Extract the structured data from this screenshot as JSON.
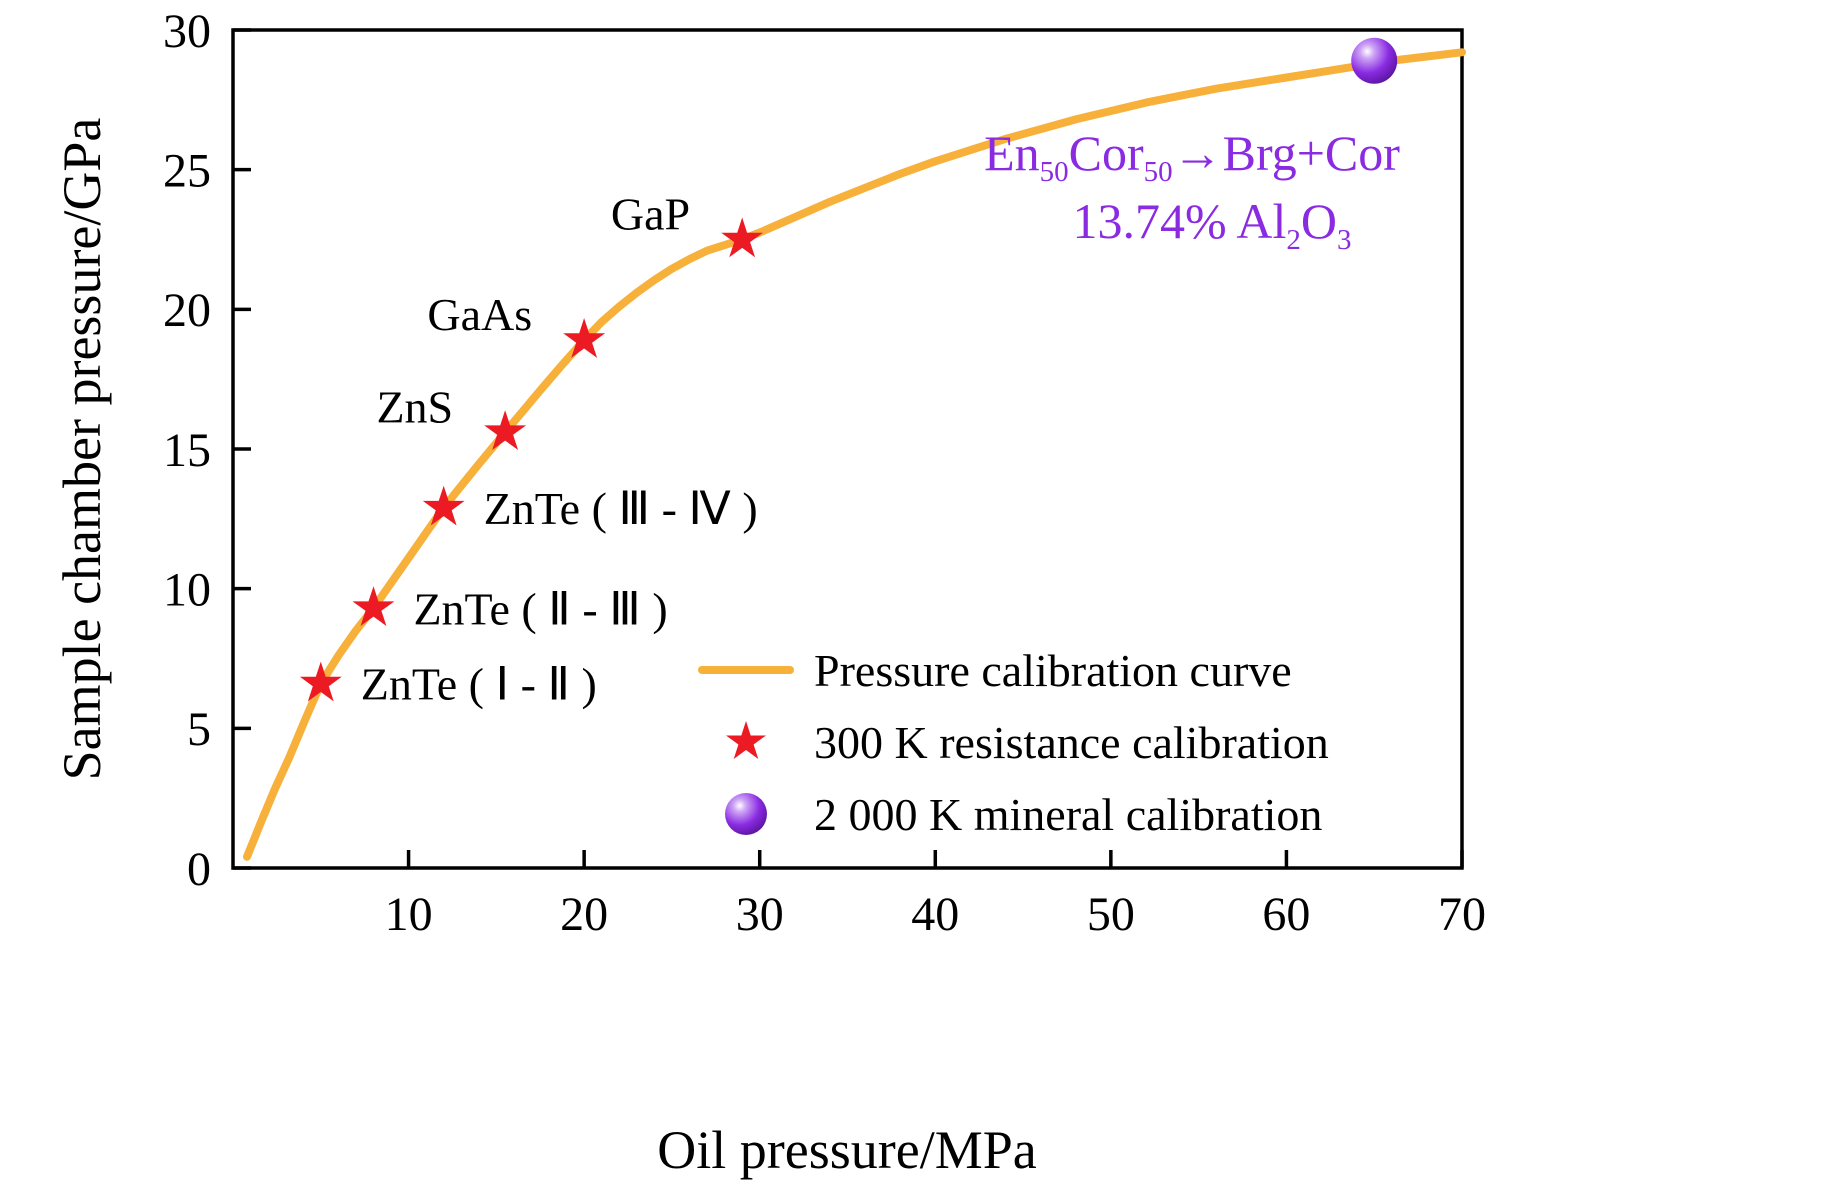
{
  "chart_data": {
    "type": "line",
    "title": "",
    "xlabel": "Oil pressure/MPa",
    "ylabel": "Sample chamber pressure/GPa",
    "xlim": [
      0,
      70
    ],
    "ylim": [
      0,
      30
    ],
    "xticks": [
      10,
      20,
      30,
      40,
      50,
      60,
      70
    ],
    "yticks": [
      0,
      5,
      10,
      15,
      20,
      25,
      30
    ],
    "grid": false,
    "legend_position": "lower-right-inside",
    "colors": {
      "curve": "#F7B13B",
      "star": "#EC1B23",
      "sphere": "#8A2BE2",
      "annotation": "#8A2BE2",
      "axis": "#000000"
    },
    "curve": {
      "label": "Pressure calibration curve",
      "points": [
        [
          0.8,
          0.4
        ],
        [
          1.6,
          1.65
        ],
        [
          2.4,
          2.85
        ],
        [
          3.2,
          3.95
        ],
        [
          4.1,
          5.3
        ],
        [
          5,
          6.6
        ],
        [
          6,
          7.6
        ],
        [
          7,
          8.5
        ],
        [
          8,
          9.3
        ],
        [
          9,
          10.2
        ],
        [
          10,
          11.1
        ],
        [
          11,
          12.0
        ],
        [
          12,
          12.9
        ],
        [
          13,
          13.68
        ],
        [
          14,
          14.46
        ],
        [
          15,
          15.22
        ],
        [
          15.5,
          15.6
        ],
        [
          16.5,
          16.35
        ],
        [
          17.5,
          17.1
        ],
        [
          18.7,
          17.98
        ],
        [
          20,
          18.9
        ],
        [
          21,
          19.55
        ],
        [
          22,
          20.1
        ],
        [
          23,
          20.6
        ],
        [
          24,
          21.05
        ],
        [
          25,
          21.45
        ],
        [
          26,
          21.8
        ],
        [
          27,
          22.1
        ],
        [
          28,
          22.3
        ],
        [
          29,
          22.5
        ],
        [
          30,
          22.75
        ],
        [
          32,
          23.3
        ],
        [
          34,
          23.85
        ],
        [
          36,
          24.35
        ],
        [
          38,
          24.85
        ],
        [
          40,
          25.3
        ],
        [
          42,
          25.7
        ],
        [
          44,
          26.1
        ],
        [
          46,
          26.45
        ],
        [
          48,
          26.8
        ],
        [
          50,
          27.1
        ],
        [
          52,
          27.4
        ],
        [
          54,
          27.65
        ],
        [
          56,
          27.9
        ],
        [
          58,
          28.1
        ],
        [
          60,
          28.3
        ],
        [
          62,
          28.5
        ],
        [
          64,
          28.7
        ],
        [
          66,
          28.9
        ],
        [
          68,
          29.05
        ],
        [
          70,
          29.2
        ]
      ]
    },
    "resistance_calibration": {
      "label": "300 K resistance calibration",
      "points": [
        {
          "x": 5,
          "y": 6.6,
          "label": "ZnTe ( Ⅰ - Ⅱ )",
          "label_side": "right"
        },
        {
          "x": 8,
          "y": 9.3,
          "label": "ZnTe ( Ⅱ - Ⅲ )",
          "label_side": "right"
        },
        {
          "x": 12,
          "y": 12.9,
          "label": "ZnTe ( Ⅲ - Ⅳ )",
          "label_side": "right"
        },
        {
          "x": 15.5,
          "y": 15.6,
          "label": "ZnS",
          "label_side": "upper-left"
        },
        {
          "x": 20,
          "y": 18.9,
          "label": "GaAs",
          "label_side": "upper-left"
        },
        {
          "x": 29,
          "y": 22.5,
          "label": "GaP",
          "label_side": "upper-left"
        }
      ]
    },
    "mineral_calibration": {
      "label": "2 000 K mineral calibration",
      "points": [
        {
          "x": 65,
          "y": 28.9
        }
      ]
    },
    "annotation": {
      "lines": [
        [
          {
            "t": "En"
          },
          {
            "t": "50",
            "sub": true
          },
          {
            "t": "Cor"
          },
          {
            "t": "50",
            "sub": true
          },
          {
            "t": "→Brg+Cor"
          }
        ],
        [
          {
            "t": "13.74% Al"
          },
          {
            "t": "2",
            "sub": true
          },
          {
            "t": "O"
          },
          {
            "t": "3",
            "sub": true
          }
        ]
      ]
    },
    "legend": [
      {
        "marker": "line",
        "label": "Pressure calibration curve"
      },
      {
        "marker": "star",
        "label": "300 K resistance calibration"
      },
      {
        "marker": "sphere",
        "label": "2 000 K mineral calibration"
      }
    ]
  }
}
